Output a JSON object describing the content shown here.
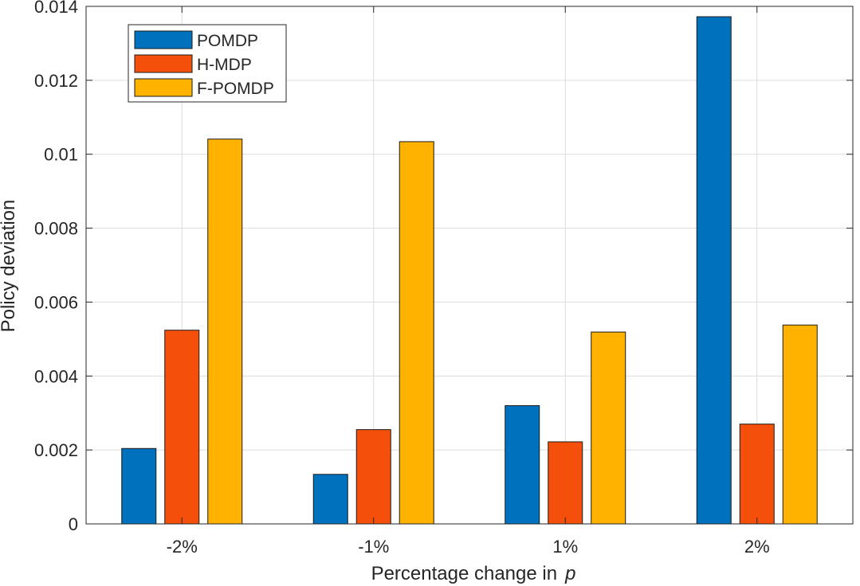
{
  "chart_data": {
    "type": "bar",
    "title": "",
    "xlabel": "Percentage change in",
    "xlabel_symbol": "p",
    "ylabel": "Policy deviation",
    "categories": [
      "-2%",
      "-1%",
      "1%",
      "2%"
    ],
    "ylim": [
      0,
      0.014
    ],
    "yticks": [
      0,
      0.002,
      0.004,
      0.006,
      0.008,
      0.01,
      0.012,
      0.014
    ],
    "ytick_labels": [
      "0",
      "0.002",
      "0.004",
      "0.006",
      "0.008",
      "0.01",
      "0.012",
      "0.014"
    ],
    "grid": true,
    "legend_position": "top-left",
    "series": [
      {
        "name": "POMDP",
        "color": "#0072BD",
        "values": [
          0.00204,
          0.00134,
          0.0032,
          0.01372
        ]
      },
      {
        "name": "H-MDP",
        "color": "#F5500B",
        "values": [
          0.00524,
          0.00255,
          0.00222,
          0.0027
        ]
      },
      {
        "name": "F-POMDP",
        "color": "#FFB300",
        "values": [
          0.01041,
          0.01034,
          0.00519,
          0.00538
        ]
      }
    ]
  }
}
